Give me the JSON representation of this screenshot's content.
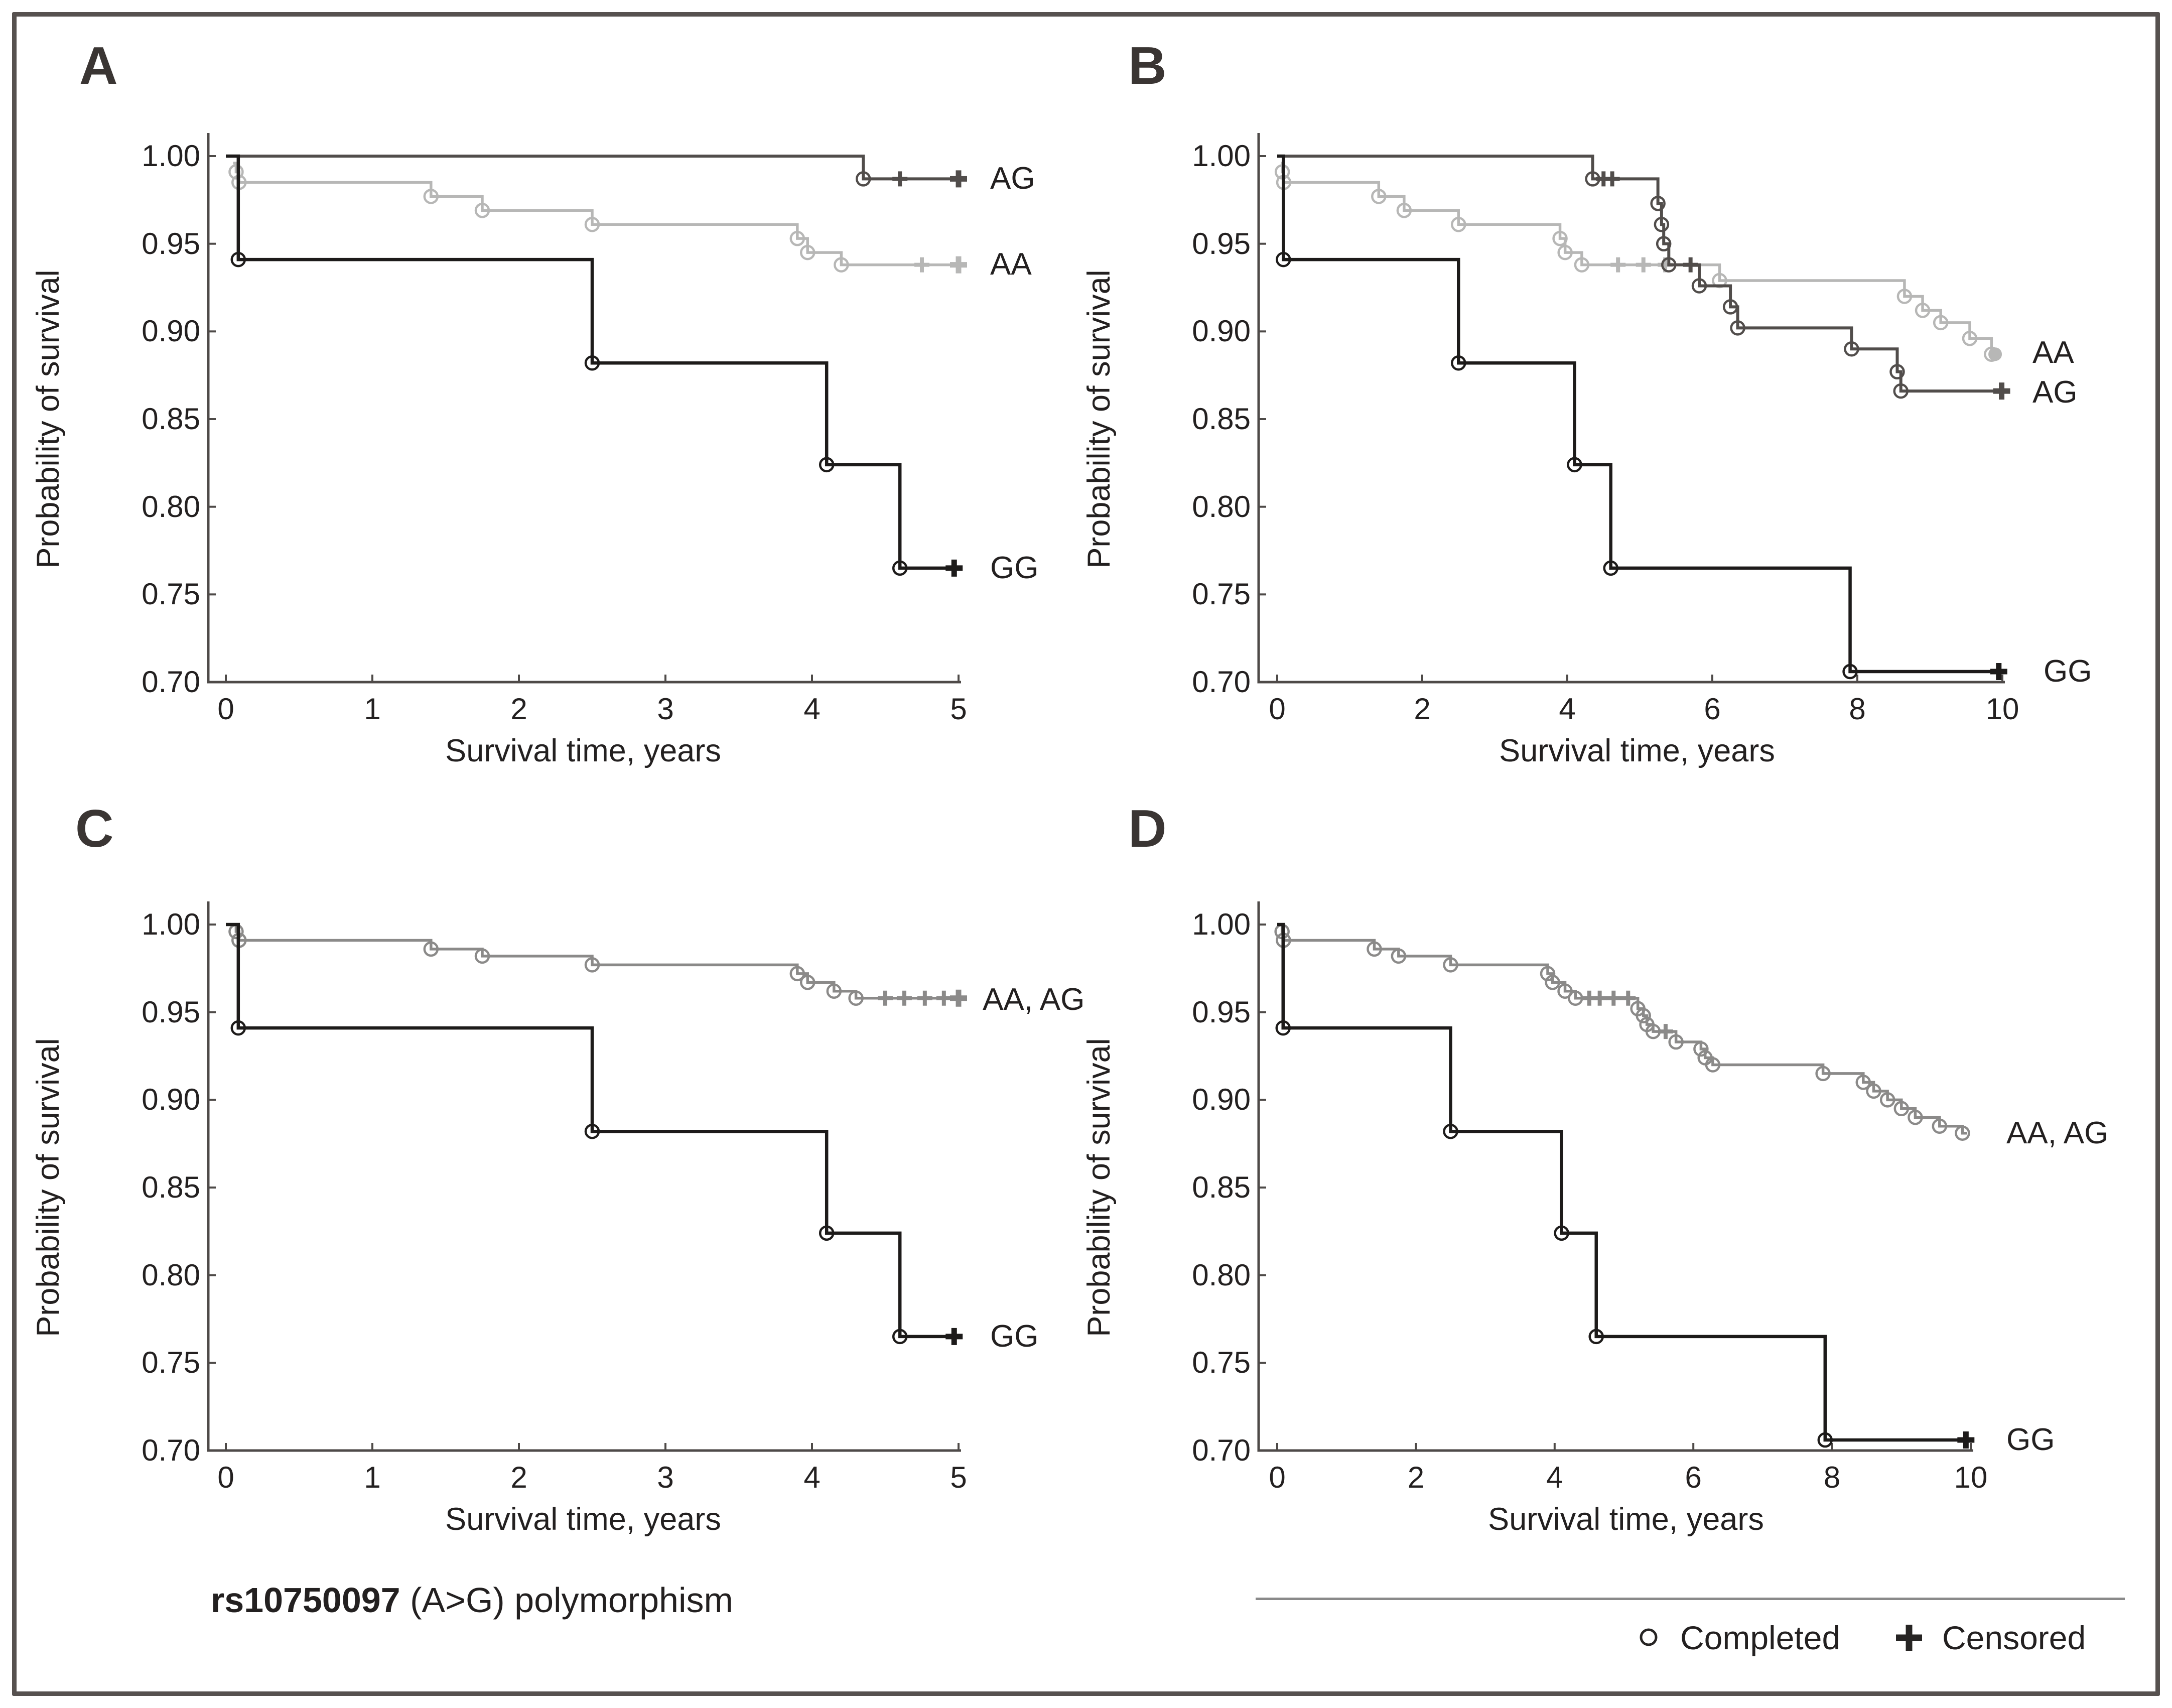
{
  "figure": {
    "caption_bold": "rs10750097",
    "caption_rest": " (A>G) polymorphism",
    "xlabel": "Survival time, years",
    "ylabel": "Probability of survival",
    "legend": {
      "completed": "Completed",
      "censored": "Censored"
    }
  },
  "colors": {
    "gg": "#1d1b1a",
    "ag": "#514d4b",
    "aa": "#b7b7b6",
    "combined": "#8b8a89",
    "axis": "#4e4a48",
    "text": "#232020",
    "frame": "#56514f",
    "legend_marker": "#262423"
  },
  "chart_data": [
    {
      "panel_label": "A",
      "type": "line",
      "subtype": "kaplan-meier-step",
      "xlabel": "Survival time, years",
      "ylabel": "Probability of survival",
      "xlim": [
        0,
        5
      ],
      "ylim": [
        0.7,
        1.0
      ],
      "xticks": [
        0,
        1,
        2,
        3,
        4,
        5
      ],
      "yticks": [
        1.0,
        0.95,
        0.9,
        0.85,
        0.8,
        0.75,
        0.7
      ],
      "grid": false,
      "legend_position": "right-of-curve",
      "series": [
        {
          "name": "AA",
          "label": "AA",
          "color_key": "aa",
          "width": 5.5,
          "start": [
            0.05,
            0.996
          ],
          "steps": [
            [
              0.07,
              0.991
            ],
            [
              0.09,
              0.985
            ],
            [
              1.4,
              0.977
            ],
            [
              1.75,
              0.969
            ],
            [
              2.5,
              0.961
            ],
            [
              3.9,
              0.953
            ],
            [
              3.97,
              0.945
            ],
            [
              4.2,
              0.938
            ]
          ],
          "censors": [
            [
              4.75,
              0.938
            ]
          ],
          "end": {
            "x": 5.0,
            "marker": "plus"
          }
        },
        {
          "name": "AG",
          "label": "AG",
          "color_key": "ag",
          "width": 6,
          "start": [
            0,
            1.0
          ],
          "steps": [
            [
              4.35,
              0.987
            ]
          ],
          "censors": [
            [
              4.6,
              0.987
            ]
          ],
          "end": {
            "x": 5.0,
            "marker": "plus"
          }
        },
        {
          "name": "GG",
          "label": "GG",
          "color_key": "gg",
          "width": 6.5,
          "start": [
            0,
            1.0
          ],
          "steps": [
            [
              0.085,
              0.941
            ],
            [
              2.5,
              0.882
            ],
            [
              4.1,
              0.824
            ],
            [
              4.6,
              0.765
            ]
          ],
          "censors": [],
          "end": {
            "x": 4.97,
            "marker": "plus"
          }
        }
      ]
    },
    {
      "panel_label": "B",
      "type": "line",
      "subtype": "kaplan-meier-step",
      "xlabel": "Survival time, years",
      "ylabel": "Probability of survival",
      "xlim": [
        0,
        10
      ],
      "ylim": [
        0.7,
        1.0
      ],
      "xticks": [
        0,
        2,
        4,
        6,
        8,
        10
      ],
      "yticks": [
        1.0,
        0.95,
        0.9,
        0.85,
        0.8,
        0.75,
        0.7
      ],
      "grid": false,
      "legend_position": "right-of-curve",
      "series": [
        {
          "name": "AA",
          "label": "AA",
          "color_key": "aa",
          "width": 5.5,
          "start": [
            0.05,
            0.996
          ],
          "steps": [
            [
              0.07,
              0.991
            ],
            [
              0.09,
              0.985
            ],
            [
              1.4,
              0.977
            ],
            [
              1.75,
              0.969
            ],
            [
              2.5,
              0.961
            ],
            [
              3.9,
              0.953
            ],
            [
              3.97,
              0.945
            ],
            [
              4.2,
              0.938
            ],
            [
              6.1,
              0.929
            ],
            [
              8.65,
              0.92
            ],
            [
              8.9,
              0.912
            ],
            [
              9.15,
              0.905
            ],
            [
              9.55,
              0.896
            ],
            [
              9.85,
              0.887
            ]
          ],
          "censors": [
            [
              4.7,
              0.938
            ],
            [
              5.05,
              0.938
            ],
            [
              5.35,
              0.938
            ]
          ],
          "end": {
            "x": 9.9,
            "marker": "dot"
          }
        },
        {
          "name": "AG",
          "label": "AG",
          "color_key": "ag",
          "width": 6,
          "start": [
            0,
            1.0
          ],
          "steps": [
            [
              4.35,
              0.987
            ],
            [
              5.25,
              0.973
            ],
            [
              5.3,
              0.961
            ],
            [
              5.33,
              0.95
            ],
            [
              5.4,
              0.938
            ],
            [
              5.82,
              0.926
            ],
            [
              6.25,
              0.914
            ],
            [
              6.35,
              0.902
            ],
            [
              7.92,
              0.89
            ],
            [
              8.55,
              0.877
            ],
            [
              8.6,
              0.866
            ]
          ],
          "censors": [
            [
              4.5,
              0.987
            ],
            [
              4.62,
              0.987
            ],
            [
              5.7,
              0.938
            ]
          ],
          "end": {
            "x": 9.99,
            "marker": "plus"
          }
        },
        {
          "name": "GG",
          "label": "GG",
          "color_key": "gg",
          "width": 6.5,
          "start": [
            0,
            1.0
          ],
          "steps": [
            [
              0.085,
              0.941
            ],
            [
              2.5,
              0.882
            ],
            [
              4.1,
              0.824
            ],
            [
              4.6,
              0.765
            ],
            [
              7.9,
              0.706
            ]
          ],
          "censors": [],
          "end": {
            "x": 9.95,
            "marker": "plus"
          }
        }
      ]
    },
    {
      "panel_label": "C",
      "type": "line",
      "subtype": "kaplan-meier-step",
      "xlabel": "Survival time, years",
      "ylabel": "Probability of survival",
      "xlim": [
        0,
        5
      ],
      "ylim": [
        0.7,
        1.0
      ],
      "xticks": [
        0,
        1,
        2,
        3,
        4,
        5
      ],
      "yticks": [
        1.0,
        0.95,
        0.9,
        0.85,
        0.8,
        0.75,
        0.7
      ],
      "grid": false,
      "legend_position": "right-of-curve",
      "series": [
        {
          "name": "AA, AG",
          "label": "AA, AG",
          "color_key": "combined",
          "width": 5.5,
          "start": [
            0.05,
            1.0
          ],
          "steps": [
            [
              0.07,
              0.996
            ],
            [
              0.09,
              0.991
            ],
            [
              1.4,
              0.986
            ],
            [
              1.75,
              0.982
            ],
            [
              2.5,
              0.977
            ],
            [
              3.9,
              0.972
            ],
            [
              3.97,
              0.967
            ],
            [
              4.15,
              0.962
            ],
            [
              4.3,
              0.958
            ]
          ],
          "censors": [
            [
              4.5,
              0.958
            ],
            [
              4.63,
              0.958
            ],
            [
              4.77,
              0.958
            ],
            [
              4.9,
              0.958
            ]
          ],
          "end": {
            "x": 5.0,
            "marker": "plus"
          }
        },
        {
          "name": "GG",
          "label": "GG",
          "color_key": "gg",
          "width": 6.5,
          "start": [
            0,
            1.0
          ],
          "steps": [
            [
              0.085,
              0.941
            ],
            [
              2.5,
              0.882
            ],
            [
              4.1,
              0.824
            ],
            [
              4.6,
              0.765
            ]
          ],
          "censors": [],
          "end": {
            "x": 4.97,
            "marker": "plus"
          }
        }
      ]
    },
    {
      "panel_label": "D",
      "type": "line",
      "subtype": "kaplan-meier-step",
      "xlabel": "Survival time, years",
      "ylabel": "Probability of survival",
      "xlim": [
        0,
        10
      ],
      "ylim": [
        0.7,
        1.0
      ],
      "xticks": [
        0,
        2,
        4,
        6,
        8,
        10
      ],
      "yticks": [
        1.0,
        0.95,
        0.9,
        0.85,
        0.8,
        0.75,
        0.7
      ],
      "grid": false,
      "legend_position": "right-of-curve",
      "series": [
        {
          "name": "AA, AG",
          "label": "AA, AG",
          "color_key": "combined",
          "width": 5.5,
          "start": [
            0.05,
            1.0
          ],
          "steps": [
            [
              0.07,
              0.996
            ],
            [
              0.09,
              0.991
            ],
            [
              1.4,
              0.986
            ],
            [
              1.75,
              0.982
            ],
            [
              2.5,
              0.977
            ],
            [
              3.9,
              0.972
            ],
            [
              3.97,
              0.967
            ],
            [
              4.15,
              0.962
            ],
            [
              4.3,
              0.958
            ],
            [
              5.2,
              0.952
            ],
            [
              5.28,
              0.948
            ],
            [
              5.33,
              0.943
            ],
            [
              5.42,
              0.939
            ],
            [
              5.75,
              0.933
            ],
            [
              6.11,
              0.929
            ],
            [
              6.17,
              0.924
            ],
            [
              6.28,
              0.92
            ],
            [
              7.87,
              0.915
            ],
            [
              8.45,
              0.91
            ],
            [
              8.6,
              0.905
            ],
            [
              8.8,
              0.9
            ],
            [
              9.0,
              0.895
            ],
            [
              9.2,
              0.89
            ],
            [
              9.55,
              0.885
            ],
            [
              9.88,
              0.881
            ]
          ],
          "censors": [
            [
              4.5,
              0.958
            ],
            [
              4.65,
              0.958
            ],
            [
              4.85,
              0.958
            ],
            [
              5.06,
              0.958
            ],
            [
              5.6,
              0.939
            ]
          ],
          "end": {
            "x": 9.95,
            "marker": "none"
          }
        },
        {
          "name": "GG",
          "label": "GG",
          "color_key": "gg",
          "width": 6.5,
          "start": [
            0,
            1.0
          ],
          "steps": [
            [
              0.085,
              0.941
            ],
            [
              2.5,
              0.882
            ],
            [
              4.1,
              0.824
            ],
            [
              4.6,
              0.765
            ],
            [
              7.9,
              0.706
            ]
          ],
          "censors": [],
          "end": {
            "x": 9.93,
            "marker": "plus"
          }
        }
      ]
    }
  ]
}
